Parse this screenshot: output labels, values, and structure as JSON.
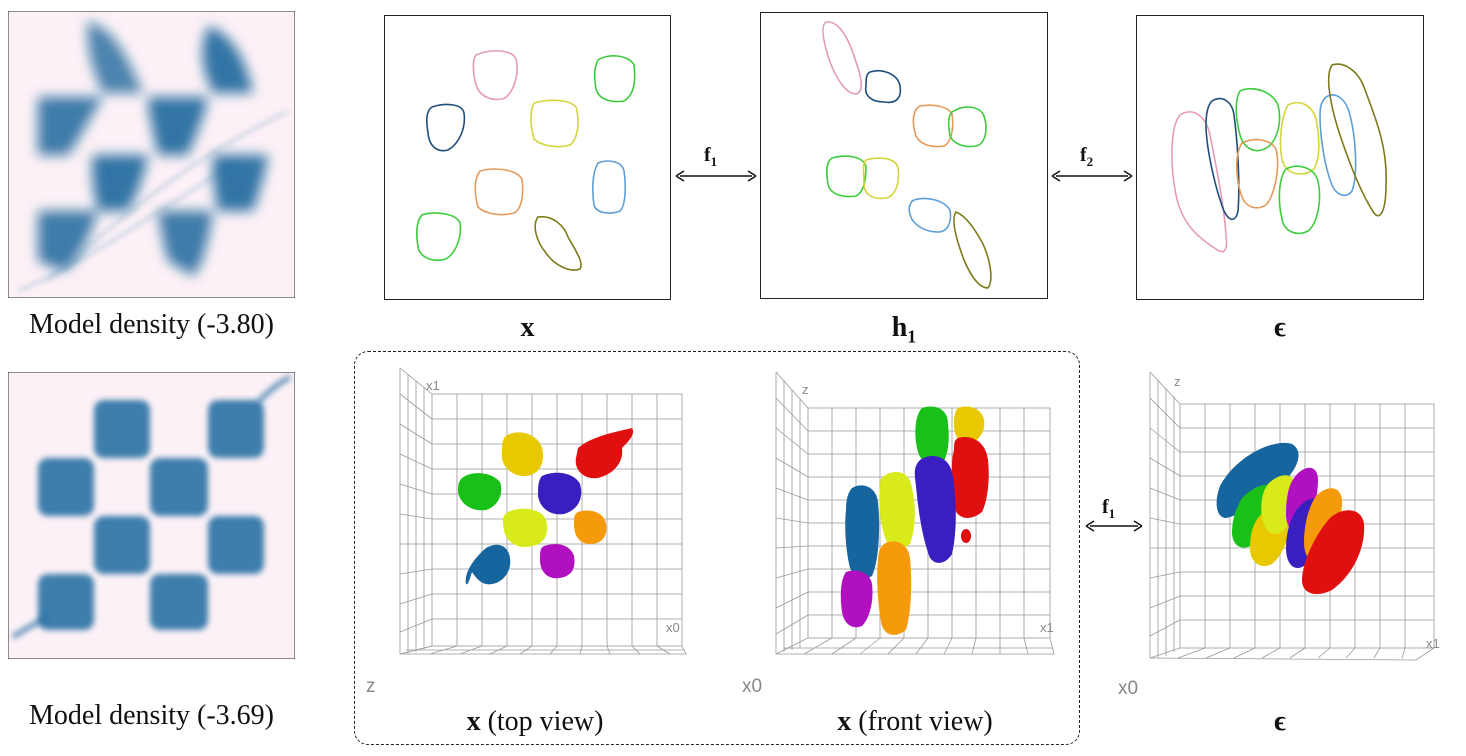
{
  "density_top": {
    "caption": "Model density (-3.80)",
    "base": "#fcf1f6",
    "ink": "#0e5f96"
  },
  "density_bottom": {
    "caption": "Model density (-3.69)",
    "base": "#fcf1f6",
    "ink": "#0e5f96"
  },
  "latent_panels": [
    {
      "id": "x",
      "label": "x"
    },
    {
      "id": "h1",
      "label": "h",
      "sub": "1"
    },
    {
      "id": "eps",
      "label": "ϵ"
    }
  ],
  "arrows": {
    "f1_top": "f",
    "f1_sub": "1",
    "f2_top": "f",
    "f2_sub": "2",
    "f1_bottom": "f",
    "f1b_sub": "1"
  },
  "views": {
    "top": {
      "caption_bold": "x",
      "caption_rest": " (top view)",
      "axis_a": "x1",
      "axis_b": "x0",
      "corner": "z"
    },
    "front": {
      "caption_bold": "x",
      "caption_rest": " (front view)",
      "axis_a": "z",
      "axis_b": "x1",
      "corner": "x0"
    },
    "eps3d": {
      "caption": "ϵ",
      "axis_a": "z",
      "axis_b": "x1",
      "corner": "x0"
    }
  },
  "colors": {
    "pink": "#e59bb6",
    "navy": "#1f4e79",
    "green": "#3ccc3c",
    "yellow": "#d4d43c",
    "orange": "#e69a5a",
    "blue": "#5e9fd6",
    "olive": "#7d7a1a",
    "s_yellow": "#e8c800",
    "s_red": "#e01010",
    "s_green": "#18c018",
    "s_indigo": "#3a1fc0",
    "s_lime": "#d8ea1a",
    "s_orange": "#f59a0a",
    "s_navy": "#16659e",
    "s_purple": "#b010c0"
  }
}
